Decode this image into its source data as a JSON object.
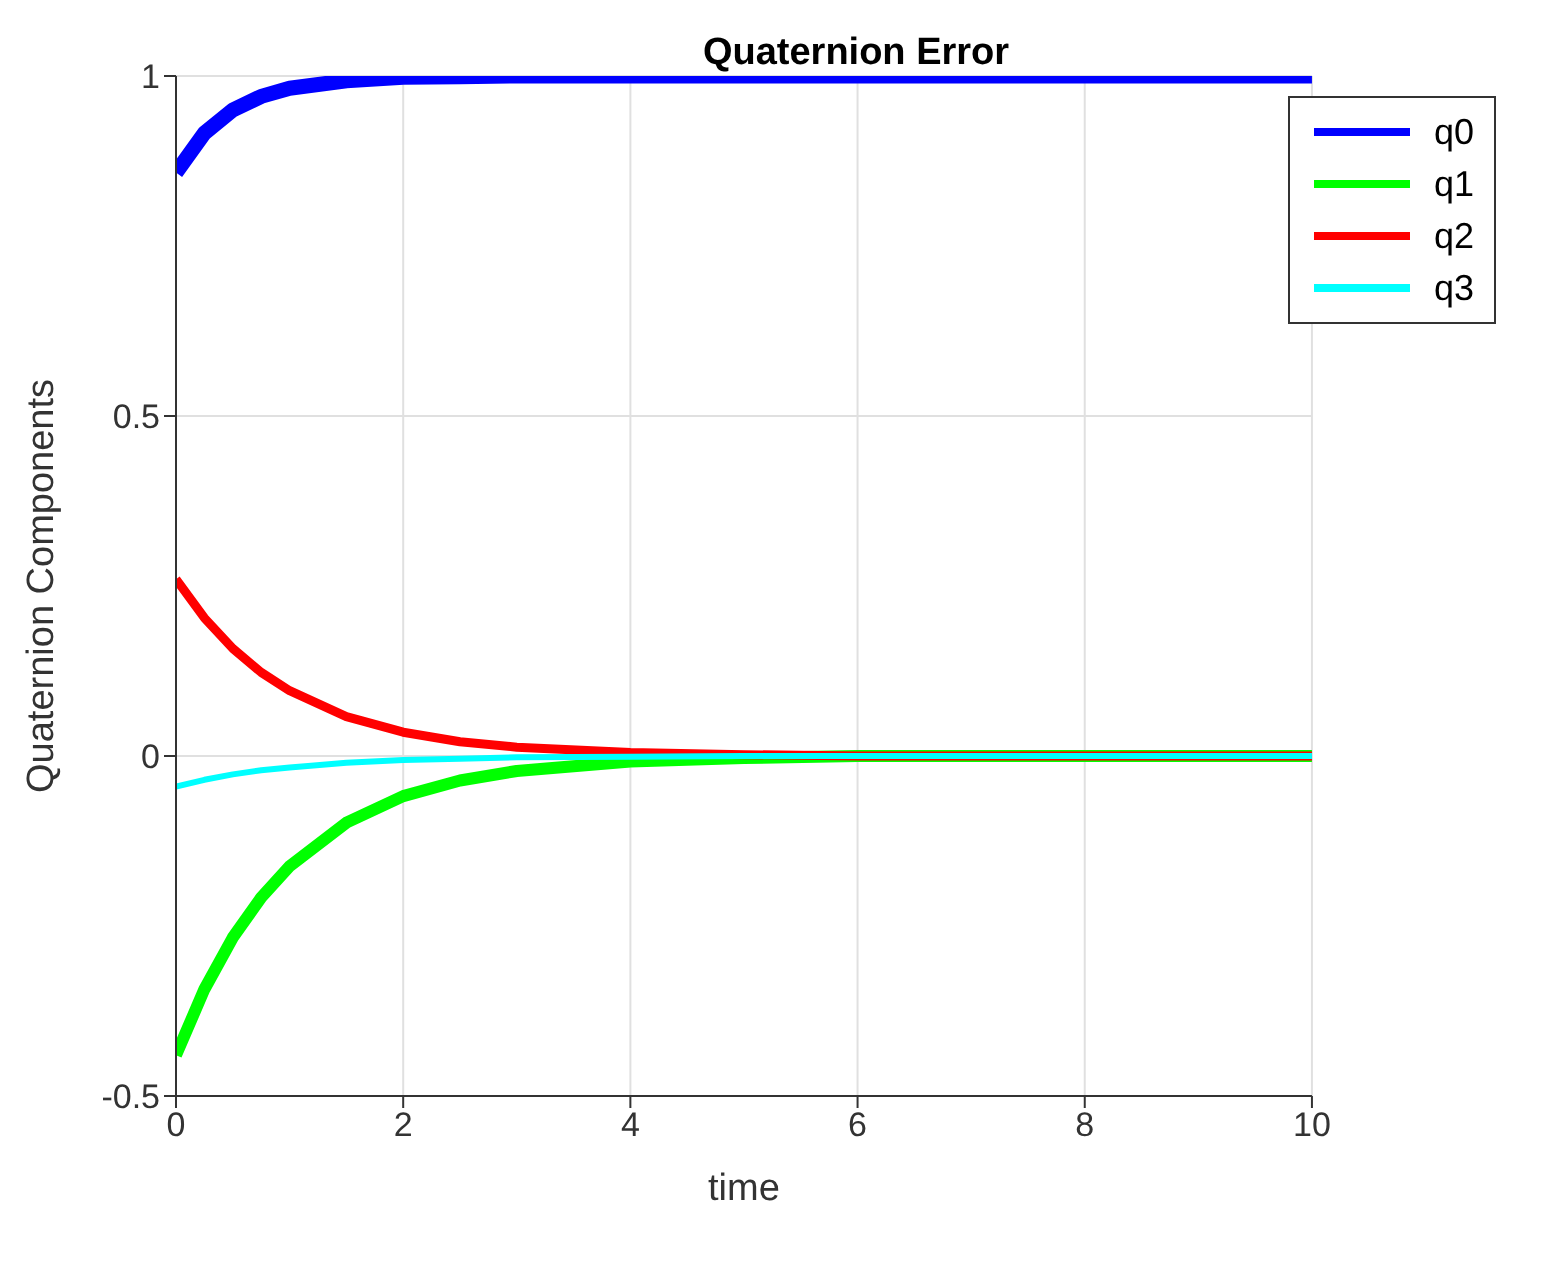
{
  "chart_data": {
    "type": "line",
    "title": "Quaternion Error",
    "xlabel": "time",
    "ylabel": "Quaternion Components",
    "x": [
      0,
      0.25,
      0.5,
      0.75,
      1,
      1.5,
      2,
      2.5,
      3,
      4,
      5,
      6,
      8,
      10
    ],
    "series": [
      {
        "name": "q0",
        "color": "#0000ff",
        "values": [
          0.858,
          0.916,
          0.95,
          0.97,
          0.982,
          0.993,
          0.998,
          0.999,
          1,
          1,
          1,
          1,
          1,
          1
        ]
      },
      {
        "name": "q1",
        "color": "#00ff00",
        "values": [
          -0.44,
          -0.343,
          -0.267,
          -0.208,
          -0.162,
          -0.098,
          -0.059,
          -0.036,
          -0.022,
          -0.008,
          -0.003,
          0,
          0,
          0
        ]
      },
      {
        "name": "q2",
        "color": "#ff0000",
        "values": [
          0.26,
          0.203,
          0.158,
          0.123,
          0.096,
          0.058,
          0.035,
          0.021,
          0.013,
          0.005,
          0.002,
          0,
          0,
          0
        ]
      },
      {
        "name": "q3",
        "color": "#00ffff",
        "values": [
          -0.045,
          -0.035,
          -0.027,
          -0.021,
          -0.017,
          -0.01,
          -0.006,
          -0.004,
          -0.002,
          -0.001,
          0,
          0,
          0,
          0
        ]
      }
    ],
    "xlim": [
      0,
      10
    ],
    "xticks": [
      0,
      2,
      4,
      6,
      8,
      10
    ],
    "ylim": [
      -0.5,
      1
    ],
    "yticks": [
      -0.5,
      0,
      0.5,
      1
    ],
    "grid": true,
    "legend": "top right",
    "marker": "none",
    "line_style": "solid"
  }
}
